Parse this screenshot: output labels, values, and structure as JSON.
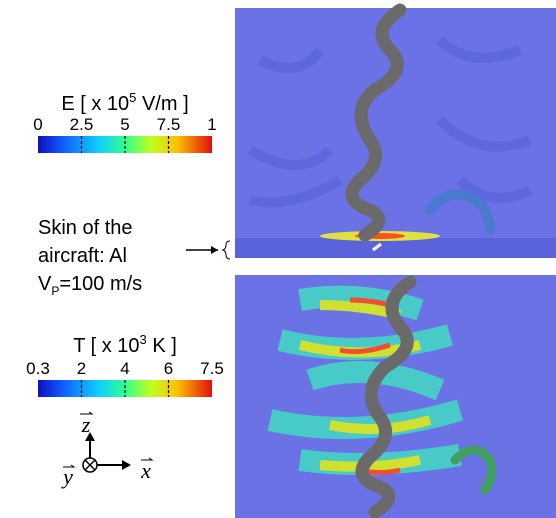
{
  "colorbars": [
    {
      "title": "E [ x 10",
      "title_sup": "5",
      "title_unit": " V/m ]",
      "ticks": [
        "0",
        "2.5",
        "5",
        "7.5",
        "1"
      ]
    },
    {
      "title": "T [ x 10",
      "title_sup": "3",
      "title_unit": " K ]",
      "ticks": [
        "0.3",
        "2",
        "4",
        "6",
        "7.5"
      ]
    }
  ],
  "annotation": {
    "lines": [
      "Skin of the",
      "aircraft: Al"
    ],
    "velocity": "V",
    "velocity_sub": "P",
    "velocity_value": "=100 m/s"
  },
  "axes": {
    "z": "z",
    "y": "y",
    "x": "x"
  }
}
